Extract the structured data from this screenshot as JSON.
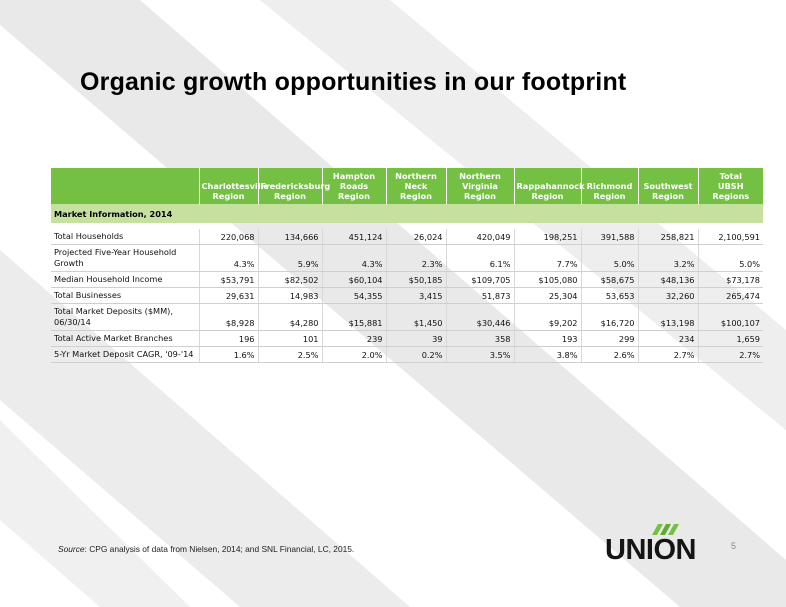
{
  "title": "Organic growth opportunities in our footprint",
  "table": {
    "headers": [
      "",
      "Charlottesville\nRegion",
      "Fredericksburg\nRegion",
      "Hampton\nRoads\nRegion",
      "Northern\nNeck\nRegion",
      "Northern\nVirginia\nRegion",
      "Rappahannock\nRegion",
      "Richmond\nRegion",
      "Southwest\nRegion",
      "Total\nUBSH Regions"
    ],
    "section": "Market Information, 2014",
    "rows": [
      {
        "label": "Total Households",
        "values": [
          "220,068",
          "134,666",
          "451,124",
          "26,024",
          "420,049",
          "198,251",
          "391,588",
          "258,821",
          "2,100,591"
        ]
      },
      {
        "label": "Projected Five-Year Household\nGrowth",
        "values": [
          "4.3%",
          "5.9%",
          "4.3%",
          "2.3%",
          "6.1%",
          "7.7%",
          "5.0%",
          "3.2%",
          "5.0%"
        ]
      },
      {
        "label": "Median Household Income",
        "values": [
          "$53,791",
          "$82,502",
          "$60,104",
          "$50,185",
          "$109,705",
          "$105,080",
          "$58,675",
          "$48,136",
          "$73,178"
        ]
      },
      {
        "label": "Total Businesses",
        "values": [
          "29,631",
          "14,983",
          "54,355",
          "3,415",
          "51,873",
          "25,304",
          "53,653",
          "32,260",
          "265,474"
        ]
      },
      {
        "label": "Total Market Deposits ($MM),\n06/30/14",
        "values": [
          "$8,928",
          "$4,280",
          "$15,881",
          "$1,450",
          "$30,446",
          "$9,202",
          "$16,720",
          "$13,198",
          "$100,107"
        ]
      },
      {
        "label": "Total Active Market Branches",
        "values": [
          "196",
          "101",
          "239",
          "39",
          "358",
          "193",
          "299",
          "234",
          "1,659"
        ]
      },
      {
        "label": "5-Yr Market Deposit CAGR, '09-'14",
        "values": [
          "1.6%",
          "2.5%",
          "2.0%",
          "0.2%",
          "3.5%",
          "3.8%",
          "2.6%",
          "2.7%",
          "2.7%"
        ]
      }
    ]
  },
  "source": {
    "prefix": "Source",
    "text": ": CPG analysis of data from Nielsen, 2014; and SNL Financial, LC, 2015."
  },
  "page_number": "5",
  "logo": {
    "text": "UNION",
    "icon": "union-leaf-logo-mark",
    "accent_color": "#74c043"
  },
  "colors": {
    "header_green": "#74c043",
    "section_green": "#c5e09f",
    "stripe_gray": "#e6e6e6"
  }
}
